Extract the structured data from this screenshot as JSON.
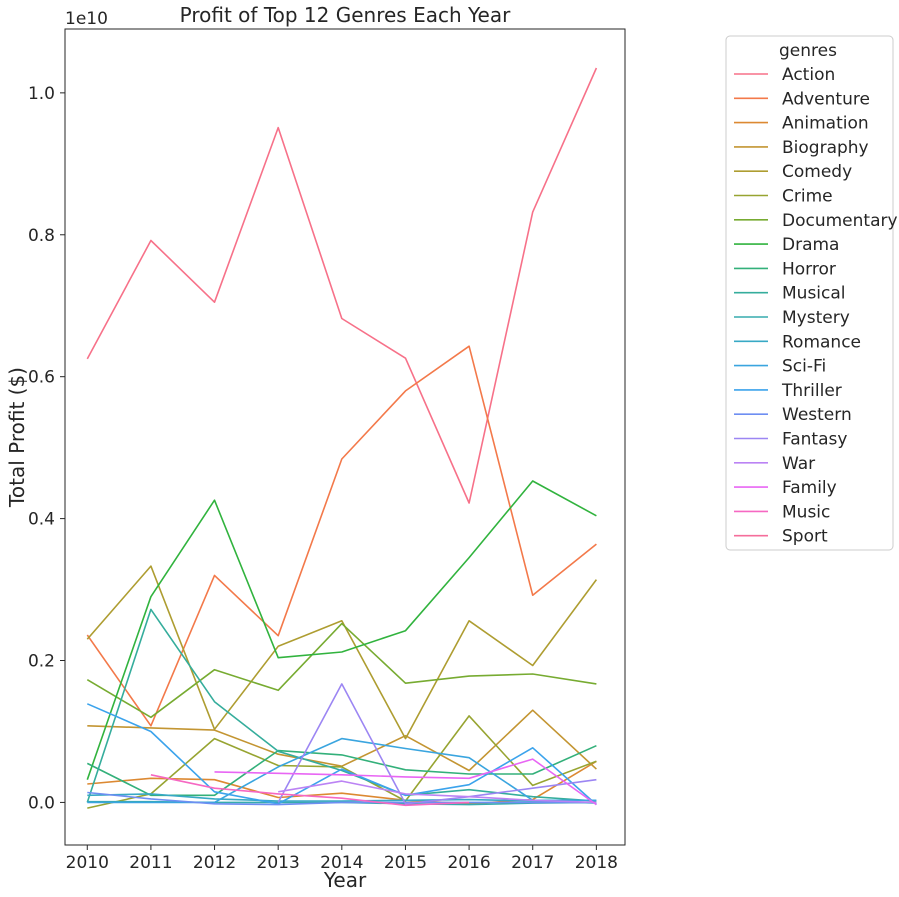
{
  "chart_data": {
    "type": "line",
    "title": "Profit of Top 12 Genres Each Year",
    "xlabel": "Year",
    "ylabel": "Total Profit ($)",
    "y_offset_label": "1e10",
    "ylim": [
      -0.06,
      1.09
    ],
    "xlim": [
      2009.65,
      2018.45
    ],
    "y_ticks": [
      0.0,
      0.2,
      0.4,
      0.6,
      0.8,
      1.0
    ],
    "y_tick_labels": [
      "0.0",
      "0.2",
      "0.4",
      "0.6",
      "0.8",
      "1.0"
    ],
    "x": [
      "2010",
      "2011",
      "2012",
      "2013",
      "2014",
      "2015",
      "2016",
      "2017",
      "2018"
    ],
    "grid": false,
    "legend": {
      "title": "genres",
      "placement": "outside-right"
    },
    "series": [
      {
        "name": "Action",
        "color": "#f77189",
        "values": [
          0.625,
          0.792,
          0.705,
          0.951,
          0.682,
          0.626,
          0.422,
          0.832,
          1.035
        ]
      },
      {
        "name": "Adventure",
        "color": "#f3794a",
        "values": [
          0.236,
          0.108,
          0.32,
          0.235,
          0.484,
          0.58,
          0.643,
          0.292,
          0.364
        ]
      },
      {
        "name": "Animation",
        "color": "#dc8932",
        "values": [
          0.026,
          0.034,
          0.032,
          0.007,
          0.013,
          0.003,
          -0.002,
          0.004,
          0.058
        ]
      },
      {
        "name": "Biography",
        "color": "#c39532",
        "values": [
          0.108,
          0.105,
          0.102,
          0.068,
          0.051,
          0.094,
          0.045,
          0.13,
          0.047
        ]
      },
      {
        "name": "Comedy",
        "color": "#ae9d31",
        "values": [
          0.23,
          0.333,
          0.103,
          0.22,
          0.256,
          0.09,
          0.256,
          0.193,
          0.314
        ]
      },
      {
        "name": "Crime",
        "color": "#97a431",
        "values": [
          -0.008,
          0.012,
          0.09,
          0.052,
          0.05,
          0.002,
          0.122,
          0.024,
          0.058
        ]
      },
      {
        "name": "Documentary",
        "color": "#77ab31",
        "values": [
          0.173,
          0.12,
          0.187,
          0.158,
          0.252,
          0.168,
          0.178,
          0.181,
          0.167
        ]
      },
      {
        "name": "Drama",
        "color": "#31b33e",
        "values": [
          0.032,
          0.29,
          0.426,
          0.204,
          0.212,
          0.242,
          0.345,
          0.453,
          0.404
        ]
      },
      {
        "name": "Horror",
        "color": "#33b07a",
        "values": [
          0.055,
          0.01,
          0.01,
          0.073,
          0.067,
          0.046,
          0.04,
          0.04,
          0.08
        ]
      },
      {
        "name": "Musical",
        "color": "#35ad9c",
        "values": [
          0.0,
          0.272,
          0.142,
          0.072,
          0.045,
          0.01,
          0.018,
          0.008,
          0.002
        ]
      },
      {
        "name": "Mystery",
        "color": "#36abae",
        "values": [
          0.001,
          0.001,
          0.0,
          0.0,
          0.0,
          -0.002,
          -0.003,
          -0.001,
          0.0
        ]
      },
      {
        "name": "Romance",
        "color": "#38a9c5",
        "values": [
          0.01,
          0.012,
          0.005,
          0.002,
          0.002,
          0.003,
          0.004,
          0.002,
          -0.001
        ]
      },
      {
        "name": "Sci-Fi",
        "color": "#3aa5df",
        "values": [
          0.0,
          0.0,
          0.0,
          0.05,
          0.09,
          0.076,
          0.063,
          0.003,
          0.003
        ]
      },
      {
        "name": "Thriller",
        "color": "#3ba3ec",
        "values": [
          0.139,
          0.1,
          0.015,
          -0.002,
          0.047,
          0.01,
          0.025,
          0.077,
          -0.003
        ]
      },
      {
        "name": "Western",
        "color": "#6e8ef2",
        "values": [
          0.014,
          0.005,
          -0.002,
          -0.003,
          0.0,
          0.0,
          0.0,
          0.0,
          0.0
        ]
      },
      {
        "name": "Fantasy",
        "color": "#9c86f3",
        "values": [
          null,
          null,
          null,
          0.0,
          0.167,
          -0.002,
          0.008,
          0.02,
          0.032
        ]
      },
      {
        "name": "War",
        "color": "#bb83f4",
        "values": [
          null,
          null,
          null,
          0.015,
          0.03,
          0.012,
          0.008,
          0.003,
          0.0
        ]
      },
      {
        "name": "Family",
        "color": "#e866f4",
        "values": [
          null,
          null,
          0.043,
          0.041,
          0.039,
          0.036,
          0.034,
          0.061,
          -0.003
        ]
      },
      {
        "name": "Music",
        "color": "#f668c2",
        "values": [
          null,
          0.039,
          0.02,
          0.012,
          0.006,
          -0.004,
          0.0,
          null,
          null
        ]
      },
      {
        "name": "Sport",
        "color": "#f56e9b",
        "values": [
          null,
          null,
          null,
          null,
          null,
          null,
          null,
          null,
          null
        ]
      }
    ]
  }
}
